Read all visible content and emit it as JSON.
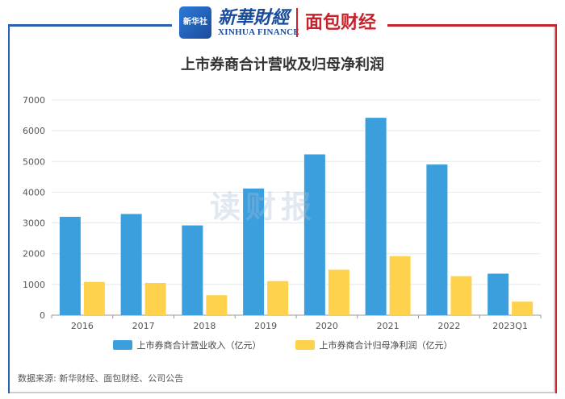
{
  "header": {
    "logo_badge": "新华社",
    "logo_main": "新華財經",
    "logo_sub": "XINHUA FINANCE",
    "logo_partner": "面包财经"
  },
  "watermark": "读财报",
  "source": "数据来源: 新华财经、面包财经、公司公告",
  "colors": {
    "revenue": "#3a9fdc",
    "profit": "#ffd24d",
    "grid": "#e5e8ec",
    "axis": "#999999",
    "frame_left": "#2a60b0",
    "frame_right": "#c8232c"
  },
  "chart_data": {
    "type": "bar",
    "title": "上市券商合计营收及归母净利润",
    "categories": [
      "2016",
      "2017",
      "2018",
      "2019",
      "2020",
      "2021",
      "2022",
      "2023Q1"
    ],
    "series": [
      {
        "name": "上市券商合计营业收入（亿元）",
        "values": [
          3200,
          3290,
          2920,
          4120,
          5230,
          6420,
          4900,
          1350
        ]
      },
      {
        "name": "上市券商合计归母净利润（亿元）",
        "values": [
          1080,
          1050,
          650,
          1110,
          1480,
          1920,
          1270,
          440
        ]
      }
    ],
    "ylim": [
      0,
      7000
    ],
    "yticks": [
      0,
      1000,
      2000,
      3000,
      4000,
      5000,
      6000,
      7000
    ],
    "xlabel": "",
    "ylabel": "",
    "grid": true,
    "legend": "bottom"
  }
}
